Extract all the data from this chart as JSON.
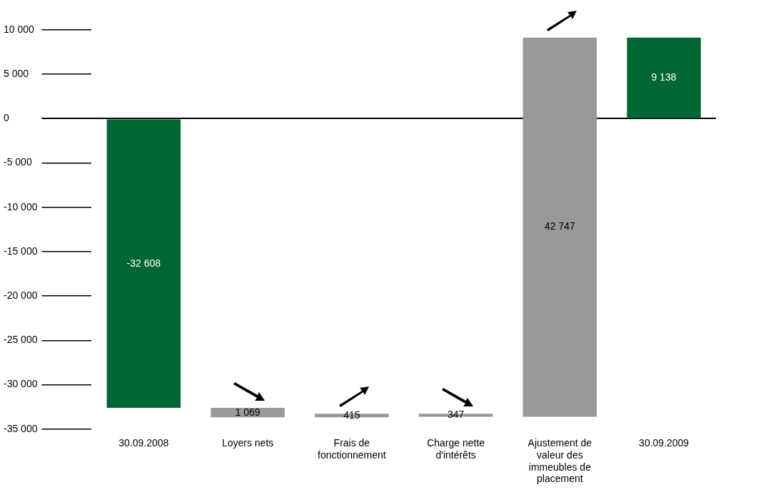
{
  "chart_data": {
    "type": "bar",
    "categories": [
      "30.09.2008",
      "Loyers nets",
      "Frais de fonctionnement",
      "Charge nette d'intérêts",
      "Ajustement de valeur des immeubles de placement",
      "30.09.2009"
    ],
    "values": [
      -32608,
      1069,
      415,
      347,
      42747,
      9138
    ],
    "base": [
      0,
      -33677,
      -33677,
      -33609,
      -33609,
      0
    ],
    "colors": [
      "#006633",
      "#999999",
      "#999999",
      "#999999",
      "#999999",
      "#006633"
    ],
    "value_labels": [
      "-32 608",
      "1 069",
      "415",
      "347",
      "42 747",
      "9 138"
    ],
    "ylim": [
      -35000,
      10000
    ],
    "yticks": [
      {
        "value": 10000,
        "label": "10 000"
      },
      {
        "value": 5000,
        "label": "5 000"
      },
      0,
      {
        "value": -5000,
        "label": "-5 000"
      },
      {
        "value": -10000,
        "label": "-10 000"
      },
      {
        "value": -15000,
        "label": "-15 000"
      },
      {
        "value": -20000,
        "label": "-20 000"
      },
      {
        "value": -25000,
        "label": "-25 000"
      },
      {
        "value": -30000,
        "label": "-30 000"
      },
      {
        "value": -35000,
        "label": "-35 000"
      }
    ],
    "grid": "y",
    "legend": false
  }
}
